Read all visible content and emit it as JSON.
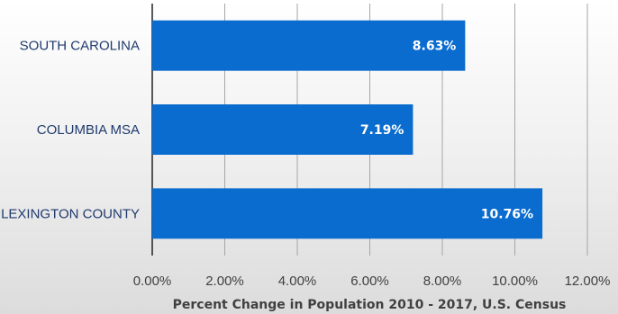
{
  "chart_data": {
    "type": "bar",
    "orientation": "horizontal",
    "categories": [
      "SOUTH CAROLINA",
      "COLUMBIA MSA",
      "LEXINGTON COUNTY"
    ],
    "values": [
      8.63,
      7.19,
      10.76
    ],
    "data_labels": [
      "8.63%",
      "7.19%",
      "10.76%"
    ],
    "xlabel": "Percent Change in Population 2010 - 2017, U.S. Census",
    "xlim": [
      0,
      12
    ],
    "xticks": [
      "0.00%",
      "2.00%",
      "4.00%",
      "6.00%",
      "8.00%",
      "10.00%",
      "12.00%"
    ],
    "grid": true,
    "bar_color": "#0a6ccf"
  }
}
